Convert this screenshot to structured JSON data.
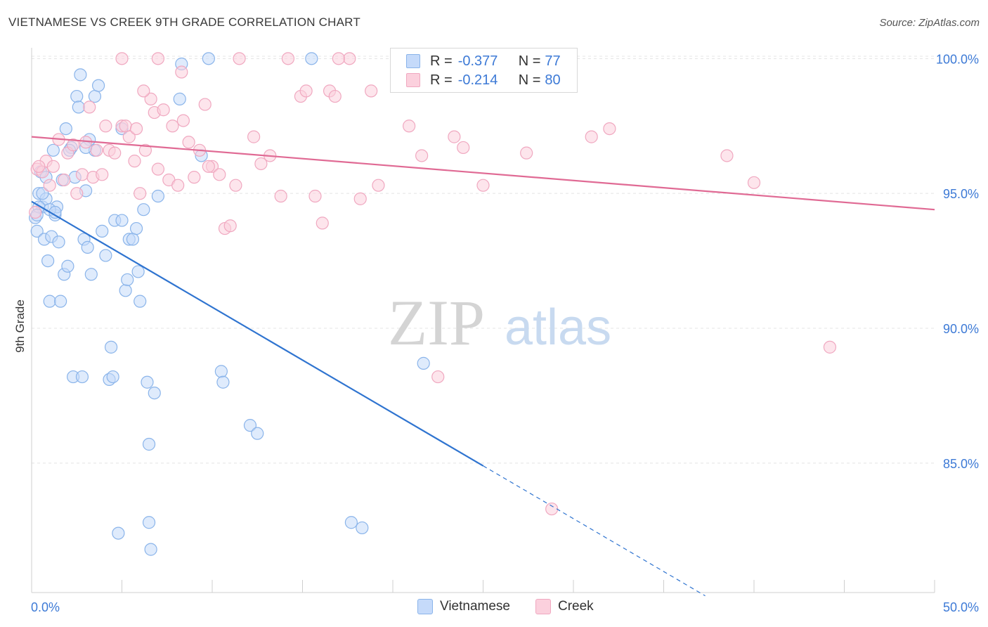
{
  "header": {
    "title": "VIETNAMESE VS CREEK 9TH GRADE CORRELATION CHART",
    "source": "Source: ZipAtlas.com"
  },
  "legend": {
    "rows": [
      {
        "r_label": "R =",
        "r_value": "-0.377",
        "n_label": "N =",
        "n_value": "77",
        "color": "#8ab4ea",
        "fill": "#c5dafa"
      },
      {
        "r_label": "R =",
        "r_value": "-0.214",
        "n_label": "N = ",
        "n_value": "80",
        "color": "#f0a8c0",
        "fill": "#fbd0dd"
      }
    ],
    "bottom": [
      {
        "label": "Vietnamese",
        "color": "#8ab4ea",
        "fill": "#c5dafa"
      },
      {
        "label": "Creek",
        "color": "#f0a8c0",
        "fill": "#fbd0dd"
      }
    ]
  },
  "watermark": {
    "left": "ZIP",
    "right": "atlas"
  },
  "chart_data": {
    "type": "scatter",
    "ylabel": "9th Grade",
    "x_tick_labels": [
      "0.0%",
      "50.0%"
    ],
    "y_tick_labels": [
      "100.0%",
      "95.0%",
      "90.0%",
      "85.0%"
    ],
    "xlim": [
      0,
      50
    ],
    "ylim": [
      80.2,
      100.4
    ],
    "y_ticks": [
      100,
      95,
      90,
      85
    ],
    "x_minor_ticks": [
      0,
      5,
      10,
      15,
      20,
      25,
      30,
      35,
      40,
      45,
      50
    ],
    "grid": true,
    "series": [
      {
        "name": "Vietnamese",
        "color": "#8ab4ea",
        "fill": "#c5dafa",
        "line_color": "#2f74d0",
        "trend": {
          "x0": 0,
          "y0": 94.7,
          "x1": 25,
          "y1": 84.9,
          "dash_x_end": 37.3
        },
        "points": [
          [
            0.2,
            94.1
          ],
          [
            0.3,
            93.6
          ],
          [
            0.4,
            95.0
          ],
          [
            0.5,
            95.8
          ],
          [
            0.6,
            94.5
          ],
          [
            0.7,
            93.3
          ],
          [
            0.8,
            94.8
          ],
          [
            0.9,
            92.5
          ],
          [
            1.0,
            91.0
          ],
          [
            1.1,
            93.4
          ],
          [
            1.2,
            96.6
          ],
          [
            1.3,
            94.2
          ],
          [
            1.4,
            94.5
          ],
          [
            1.5,
            93.2
          ],
          [
            1.6,
            91.0
          ],
          [
            1.7,
            95.5
          ],
          [
            1.8,
            92.0
          ],
          [
            1.9,
            97.4
          ],
          [
            2.0,
            92.3
          ],
          [
            2.2,
            96.7
          ],
          [
            2.3,
            88.2
          ],
          [
            2.5,
            98.6
          ],
          [
            2.6,
            98.2
          ],
          [
            2.7,
            99.4
          ],
          [
            2.8,
            88.2
          ],
          [
            2.9,
            93.3
          ],
          [
            3.0,
            95.1
          ],
          [
            3.1,
            93.0
          ],
          [
            3.3,
            92.0
          ],
          [
            3.5,
            98.6
          ],
          [
            3.7,
            99.0
          ],
          [
            3.9,
            93.6
          ],
          [
            4.1,
            92.7
          ],
          [
            4.3,
            88.1
          ],
          [
            4.4,
            89.3
          ],
          [
            4.5,
            88.2
          ],
          [
            4.6,
            94.0
          ],
          [
            4.8,
            82.4
          ],
          [
            5.0,
            94.0
          ],
          [
            5.2,
            91.4
          ],
          [
            5.3,
            91.8
          ],
          [
            5.4,
            93.3
          ],
          [
            5.6,
            93.3
          ],
          [
            5.8,
            93.7
          ],
          [
            5.9,
            92.1
          ],
          [
            6.0,
            91.0
          ],
          [
            6.2,
            94.4
          ],
          [
            6.4,
            88.0
          ],
          [
            6.5,
            85.7
          ],
          [
            6.5,
            82.8
          ],
          [
            6.6,
            81.8
          ],
          [
            6.8,
            87.6
          ],
          [
            7.0,
            94.9
          ],
          [
            8.2,
            98.5
          ],
          [
            8.3,
            99.8
          ],
          [
            9.4,
            96.4
          ],
          [
            9.8,
            100.0
          ],
          [
            10.5,
            88.4
          ],
          [
            10.6,
            88.0
          ],
          [
            12.1,
            86.4
          ],
          [
            12.5,
            86.1
          ],
          [
            15.5,
            100.0
          ],
          [
            17.7,
            82.8
          ],
          [
            18.3,
            82.6
          ],
          [
            21.7,
            88.7
          ],
          [
            2.1,
            96.6
          ],
          [
            3.5,
            96.6
          ],
          [
            0.4,
            94.5
          ],
          [
            1.0,
            94.4
          ],
          [
            0.6,
            95.0
          ],
          [
            0.3,
            94.2
          ],
          [
            1.3,
            94.3
          ],
          [
            2.4,
            95.6
          ],
          [
            3.2,
            97.0
          ],
          [
            5.0,
            97.4
          ],
          [
            3.0,
            96.7
          ],
          [
            0.8,
            95.6
          ]
        ]
      },
      {
        "name": "Creek",
        "color": "#f0a8c0",
        "fill": "#fbd0dd",
        "line_color": "#e06a94",
        "trend": {
          "x0": 0,
          "y0": 97.1,
          "x1": 50,
          "y1": 94.4
        },
        "points": [
          [
            0.2,
            94.3
          ],
          [
            0.3,
            95.9
          ],
          [
            0.6,
            95.8
          ],
          [
            0.8,
            96.2
          ],
          [
            1.0,
            95.3
          ],
          [
            1.2,
            96.0
          ],
          [
            1.5,
            97.0
          ],
          [
            1.8,
            95.5
          ],
          [
            2.0,
            96.5
          ],
          [
            2.3,
            96.8
          ],
          [
            2.5,
            95.0
          ],
          [
            2.8,
            95.7
          ],
          [
            3.0,
            96.9
          ],
          [
            3.2,
            98.2
          ],
          [
            3.4,
            95.6
          ],
          [
            3.6,
            96.6
          ],
          [
            3.9,
            95.7
          ],
          [
            4.1,
            97.5
          ],
          [
            4.3,
            96.6
          ],
          [
            4.6,
            96.5
          ],
          [
            5.0,
            97.5
          ],
          [
            5.2,
            97.5
          ],
          [
            5.4,
            97.1
          ],
          [
            5.7,
            96.2
          ],
          [
            6.0,
            95.0
          ],
          [
            6.3,
            96.6
          ],
          [
            6.6,
            98.5
          ],
          [
            6.8,
            98.0
          ],
          [
            7.0,
            95.9
          ],
          [
            7.3,
            98.1
          ],
          [
            7.6,
            95.5
          ],
          [
            7.8,
            97.5
          ],
          [
            8.1,
            95.3
          ],
          [
            8.4,
            97.7
          ],
          [
            8.7,
            96.9
          ],
          [
            9.0,
            95.6
          ],
          [
            9.3,
            96.6
          ],
          [
            9.6,
            98.3
          ],
          [
            10.0,
            96.0
          ],
          [
            10.4,
            95.7
          ],
          [
            10.7,
            93.7
          ],
          [
            11.0,
            93.8
          ],
          [
            11.3,
            95.3
          ],
          [
            12.3,
            97.1
          ],
          [
            12.7,
            96.1
          ],
          [
            13.2,
            96.4
          ],
          [
            13.8,
            94.9
          ],
          [
            14.2,
            100.0
          ],
          [
            14.9,
            98.6
          ],
          [
            15.2,
            98.8
          ],
          [
            15.7,
            94.9
          ],
          [
            16.1,
            93.9
          ],
          [
            16.5,
            98.8
          ],
          [
            16.8,
            98.6
          ],
          [
            17.6,
            100.0
          ],
          [
            18.2,
            94.8
          ],
          [
            18.8,
            98.8
          ],
          [
            19.2,
            95.3
          ],
          [
            20.9,
            97.5
          ],
          [
            21.6,
            96.4
          ],
          [
            22.5,
            88.2
          ],
          [
            23.4,
            97.1
          ],
          [
            23.9,
            96.7
          ],
          [
            25.0,
            95.3
          ],
          [
            27.4,
            96.5
          ],
          [
            28.8,
            83.3
          ],
          [
            31.0,
            97.1
          ],
          [
            32.0,
            97.4
          ],
          [
            38.5,
            96.4
          ],
          [
            40.0,
            95.4
          ],
          [
            44.2,
            89.3
          ],
          [
            5.0,
            100.0
          ],
          [
            7.0,
            100.0
          ],
          [
            8.3,
            99.5
          ],
          [
            11.5,
            100.0
          ],
          [
            17.0,
            100.0
          ],
          [
            6.2,
            98.8
          ],
          [
            5.8,
            97.4
          ],
          [
            9.8,
            96.0
          ],
          [
            0.4,
            96.0
          ]
        ]
      }
    ]
  }
}
